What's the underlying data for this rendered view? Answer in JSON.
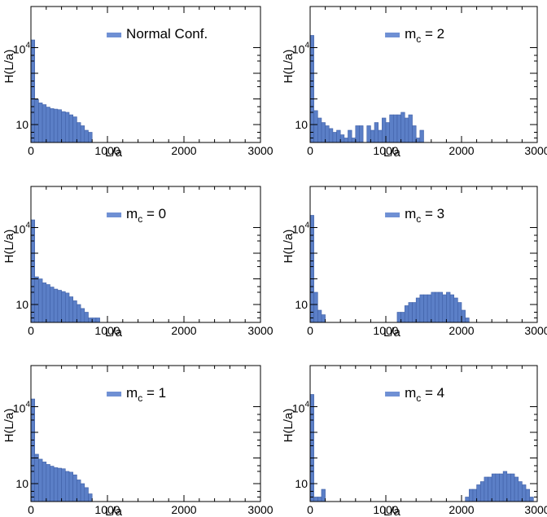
{
  "chart_data": [
    {
      "type": "bar",
      "y_scale": "log",
      "x_label": "L/a",
      "y_label": "H(L/a)",
      "x_range": [
        0,
        3000
      ],
      "x_ticks": [
        "0",
        "1000",
        "2000",
        "3000"
      ],
      "y_ticks": [
        {
          "base": "10",
          "exp": ""
        },
        {
          "base": "10",
          "exp": "4"
        }
      ],
      "legend": {
        "main": "Normal Conf.",
        "sub": ""
      },
      "bin_width": 50,
      "bins": [
        {
          "x": 0,
          "y": 20000
        },
        {
          "x": 50,
          "y": 95
        },
        {
          "x": 100,
          "y": 70
        },
        {
          "x": 150,
          "y": 60
        },
        {
          "x": 200,
          "y": 48
        },
        {
          "x": 250,
          "y": 42
        },
        {
          "x": 300,
          "y": 40
        },
        {
          "x": 350,
          "y": 38
        },
        {
          "x": 400,
          "y": 32
        },
        {
          "x": 450,
          "y": 30
        },
        {
          "x": 500,
          "y": 24
        },
        {
          "x": 550,
          "y": 20
        },
        {
          "x": 600,
          "y": 12
        },
        {
          "x": 650,
          "y": 9
        },
        {
          "x": 700,
          "y": 6
        },
        {
          "x": 750,
          "y": 5
        }
      ]
    },
    {
      "type": "bar",
      "y_scale": "log",
      "x_label": "L/a",
      "y_label": "H(L/a)",
      "x_range": [
        0,
        3000
      ],
      "x_ticks": [
        "0",
        "1000",
        "2000",
        "3000"
      ],
      "y_ticks": [
        {
          "base": "10",
          "exp": ""
        },
        {
          "base": "10",
          "exp": "4"
        }
      ],
      "legend": {
        "main": "m",
        "sub": "c",
        "rest": " = 2"
      },
      "bin_width": 50,
      "bins": [
        {
          "x": 0,
          "y": 30000
        },
        {
          "x": 50,
          "y": 35
        },
        {
          "x": 100,
          "y": 18
        },
        {
          "x": 150,
          "y": 12
        },
        {
          "x": 200,
          "y": 9
        },
        {
          "x": 250,
          "y": 7
        },
        {
          "x": 300,
          "y": 5
        },
        {
          "x": 350,
          "y": 6
        },
        {
          "x": 400,
          "y": 4
        },
        {
          "x": 450,
          "y": 3
        },
        {
          "x": 500,
          "y": 6
        },
        {
          "x": 550,
          "y": 3
        },
        {
          "x": 600,
          "y": 9
        },
        {
          "x": 650,
          "y": 9
        },
        {
          "x": 700,
          "y": 2
        },
        {
          "x": 750,
          "y": 9
        },
        {
          "x": 800,
          "y": 6
        },
        {
          "x": 850,
          "y": 12
        },
        {
          "x": 900,
          "y": 6
        },
        {
          "x": 950,
          "y": 18
        },
        {
          "x": 1000,
          "y": 12
        },
        {
          "x": 1050,
          "y": 24
        },
        {
          "x": 1100,
          "y": 24
        },
        {
          "x": 1150,
          "y": 24
        },
        {
          "x": 1200,
          "y": 30
        },
        {
          "x": 1250,
          "y": 18
        },
        {
          "x": 1300,
          "y": 24
        },
        {
          "x": 1350,
          "y": 9
        },
        {
          "x": 1400,
          "y": 3
        },
        {
          "x": 1450,
          "y": 6
        }
      ]
    },
    {
      "type": "bar",
      "y_scale": "log",
      "x_label": "L/a",
      "y_label": "H(L/a)",
      "x_range": [
        0,
        3000
      ],
      "x_ticks": [
        "0",
        "1000",
        "2000",
        "3000"
      ],
      "y_ticks": [
        {
          "base": "10",
          "exp": ""
        },
        {
          "base": "10",
          "exp": "4"
        }
      ],
      "legend": {
        "main": "m",
        "sub": "c",
        "rest": " = 0"
      },
      "bin_width": 50,
      "bins": [
        {
          "x": 0,
          "y": 20000
        },
        {
          "x": 50,
          "y": 120
        },
        {
          "x": 100,
          "y": 100
        },
        {
          "x": 150,
          "y": 70
        },
        {
          "x": 200,
          "y": 60
        },
        {
          "x": 250,
          "y": 48
        },
        {
          "x": 300,
          "y": 40
        },
        {
          "x": 350,
          "y": 36
        },
        {
          "x": 400,
          "y": 32
        },
        {
          "x": 450,
          "y": 28
        },
        {
          "x": 500,
          "y": 20
        },
        {
          "x": 550,
          "y": 14
        },
        {
          "x": 600,
          "y": 10
        },
        {
          "x": 650,
          "y": 7
        },
        {
          "x": 700,
          "y": 5
        },
        {
          "x": 750,
          "y": 3
        },
        {
          "x": 800,
          "y": 3
        },
        {
          "x": 850,
          "y": 3
        }
      ]
    },
    {
      "type": "bar",
      "y_scale": "log",
      "x_label": "L/a",
      "y_label": "H(L/a)",
      "x_range": [
        0,
        3000
      ],
      "x_ticks": [
        "0",
        "1000",
        "2000",
        "3000"
      ],
      "y_ticks": [
        {
          "base": "10",
          "exp": ""
        },
        {
          "base": "10",
          "exp": "4"
        }
      ],
      "legend": {
        "main": "m",
        "sub": "c",
        "rest": " = 3"
      },
      "bin_width": 50,
      "bins": [
        {
          "x": 0,
          "y": 30000
        },
        {
          "x": 50,
          "y": 30
        },
        {
          "x": 100,
          "y": 6
        },
        {
          "x": 150,
          "y": 4
        },
        {
          "x": 200,
          "y": 2
        },
        {
          "x": 550,
          "y": 2
        },
        {
          "x": 600,
          "y": 2
        },
        {
          "x": 700,
          "y": 2
        },
        {
          "x": 800,
          "y": 2
        },
        {
          "x": 950,
          "y": 2
        },
        {
          "x": 1100,
          "y": 2
        },
        {
          "x": 1150,
          "y": 5
        },
        {
          "x": 1200,
          "y": 5
        },
        {
          "x": 1250,
          "y": 9
        },
        {
          "x": 1300,
          "y": 12
        },
        {
          "x": 1350,
          "y": 12
        },
        {
          "x": 1400,
          "y": 18
        },
        {
          "x": 1450,
          "y": 24
        },
        {
          "x": 1500,
          "y": 24
        },
        {
          "x": 1550,
          "y": 24
        },
        {
          "x": 1600,
          "y": 30
        },
        {
          "x": 1650,
          "y": 30
        },
        {
          "x": 1700,
          "y": 30
        },
        {
          "x": 1750,
          "y": 24
        },
        {
          "x": 1800,
          "y": 30
        },
        {
          "x": 1850,
          "y": 24
        },
        {
          "x": 1900,
          "y": 18
        },
        {
          "x": 1950,
          "y": 12
        },
        {
          "x": 2000,
          "y": 6
        },
        {
          "x": 2050,
          "y": 3
        }
      ]
    },
    {
      "type": "bar",
      "y_scale": "log",
      "x_label": "L/a",
      "y_label": "H(L/a)",
      "x_range": [
        0,
        3000
      ],
      "x_ticks": [
        "0",
        "1000",
        "2000",
        "3000"
      ],
      "y_ticks": [
        {
          "base": "10",
          "exp": ""
        },
        {
          "base": "10",
          "exp": "4"
        }
      ],
      "legend": {
        "main": "m",
        "sub": "c",
        "rest": " = 1"
      },
      "bin_width": 50,
      "bins": [
        {
          "x": 0,
          "y": 20000
        },
        {
          "x": 50,
          "y": 140
        },
        {
          "x": 100,
          "y": 90
        },
        {
          "x": 150,
          "y": 70
        },
        {
          "x": 200,
          "y": 56
        },
        {
          "x": 250,
          "y": 48
        },
        {
          "x": 300,
          "y": 42
        },
        {
          "x": 350,
          "y": 40
        },
        {
          "x": 400,
          "y": 38
        },
        {
          "x": 450,
          "y": 30
        },
        {
          "x": 500,
          "y": 28
        },
        {
          "x": 550,
          "y": 22
        },
        {
          "x": 600,
          "y": 14
        },
        {
          "x": 650,
          "y": 10
        },
        {
          "x": 700,
          "y": 7
        },
        {
          "x": 750,
          "y": 4
        }
      ]
    },
    {
      "type": "bar",
      "y_scale": "log",
      "x_label": "L/a",
      "y_label": "H(L/a)",
      "x_range": [
        0,
        3000
      ],
      "x_ticks": [
        "0",
        "1000",
        "2000",
        "3000"
      ],
      "y_ticks": [
        {
          "base": "10",
          "exp": ""
        },
        {
          "base": "10",
          "exp": "4"
        }
      ],
      "legend": {
        "main": "m",
        "sub": "c",
        "rest": " = 4"
      },
      "bin_width": 50,
      "bins": [
        {
          "x": 0,
          "y": 30000
        },
        {
          "x": 50,
          "y": 3
        },
        {
          "x": 100,
          "y": 3
        },
        {
          "x": 150,
          "y": 6
        },
        {
          "x": 2050,
          "y": 3
        },
        {
          "x": 2100,
          "y": 6
        },
        {
          "x": 2150,
          "y": 6
        },
        {
          "x": 2200,
          "y": 9
        },
        {
          "x": 2250,
          "y": 12
        },
        {
          "x": 2300,
          "y": 18
        },
        {
          "x": 2350,
          "y": 18
        },
        {
          "x": 2400,
          "y": 24
        },
        {
          "x": 2450,
          "y": 24
        },
        {
          "x": 2500,
          "y": 24
        },
        {
          "x": 2550,
          "y": 30
        },
        {
          "x": 2600,
          "y": 24
        },
        {
          "x": 2650,
          "y": 24
        },
        {
          "x": 2700,
          "y": 18
        },
        {
          "x": 2750,
          "y": 12
        },
        {
          "x": 2800,
          "y": 9
        },
        {
          "x": 2850,
          "y": 6
        },
        {
          "x": 2900,
          "y": 3
        },
        {
          "x": 2950,
          "y": 2
        }
      ]
    }
  ],
  "colors": {
    "bar_fill": "#5b7fc7",
    "bar_stroke": "#3f5fa6",
    "legend_swatch": "#6f90d4",
    "axis": "#000000"
  }
}
